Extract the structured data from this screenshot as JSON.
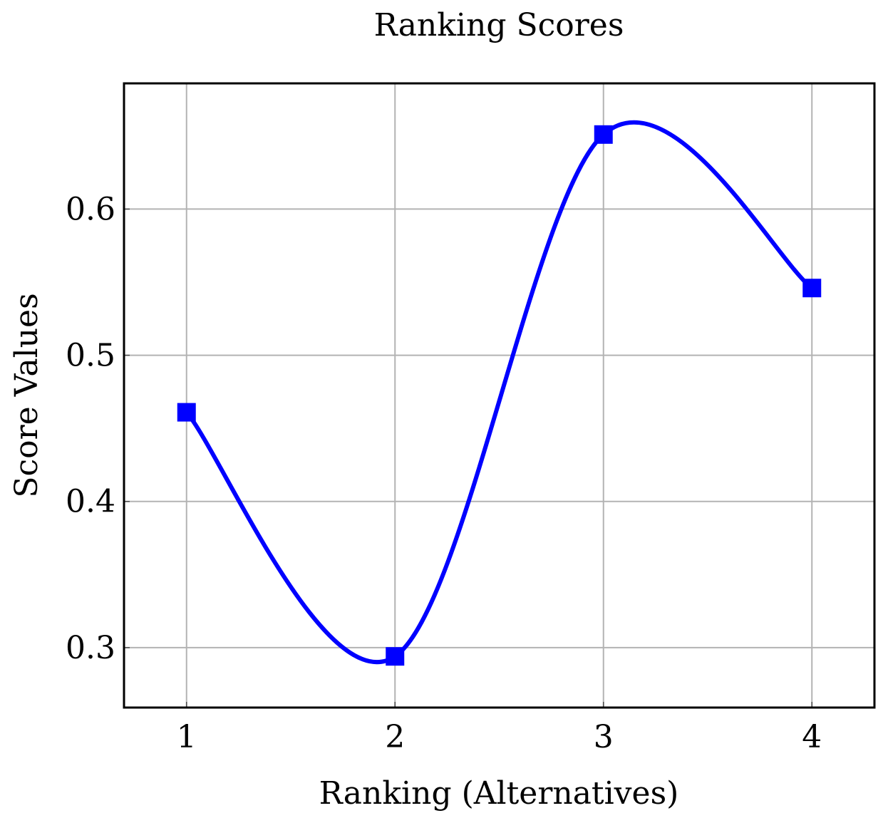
{
  "chart_data": {
    "type": "line",
    "title": "Ranking Scores",
    "xlabel": "Ranking (Alternatives)",
    "ylabel": "Score Values",
    "x": [
      1,
      2,
      3,
      4
    ],
    "x_ticks": [
      "1",
      "2",
      "3",
      "4"
    ],
    "y_ticks": [
      "0.3",
      "0.4",
      "0.5",
      "0.6"
    ],
    "y_tick_values": [
      0.3,
      0.4,
      0.5,
      0.6
    ],
    "xlim": [
      0.7,
      4.3
    ],
    "ylim": [
      0.259,
      0.686
    ],
    "grid": true,
    "smooth": true,
    "marker": "square",
    "series": [
      {
        "values": [
          0.461,
          0.294,
          0.651,
          0.546
        ],
        "color": "#0000ff"
      }
    ]
  }
}
